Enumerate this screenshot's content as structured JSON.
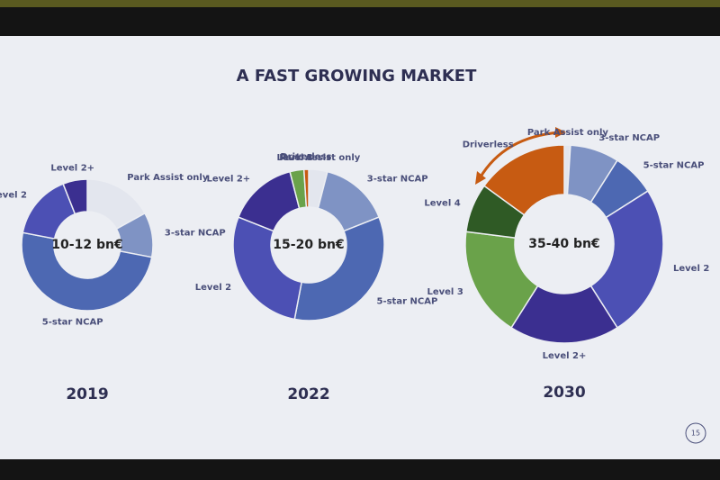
{
  "title": "A FAST GROWING MARKET",
  "page_number": "15",
  "chart_data": [
    {
      "type": "donut",
      "title": "2019",
      "center_label": "10-12 bn€",
      "categories": [
        "Park Assist only",
        "3-star NCAP",
        "5-star NCAP",
        "Level 2",
        "Level 2+"
      ],
      "values": [
        17,
        11,
        50,
        16,
        6
      ],
      "colors": [
        "#e3e6ee",
        "#7f93c4",
        "#4d68b2",
        "#4c50b4",
        "#3b2f90"
      ]
    },
    {
      "type": "donut",
      "title": "2022",
      "center_label": "15-20 bn€",
      "categories": [
        "Park Assist only",
        "3-star NCAP",
        "5-star NCAP",
        "Level 2",
        "Level 2+",
        "Level 3",
        "Driverless"
      ],
      "values": [
        4,
        15,
        34,
        28,
        15,
        3,
        1
      ],
      "colors": [
        "#e3e6ee",
        "#7f93c4",
        "#4d68b2",
        "#4c50b4",
        "#3b2f90",
        "#6aa24a",
        "#c75b12"
      ]
    },
    {
      "type": "donut",
      "title": "2030",
      "center_label": "35-40 bn€",
      "categories": [
        "Park Assist only",
        "3-star NCAP",
        "5-star NCAP",
        "Level 2",
        "Level 2+",
        "Level 3",
        "Level 4",
        "Driverless"
      ],
      "values": [
        1,
        8,
        7,
        25,
        18,
        18,
        8,
        15
      ],
      "colors": [
        "#e3e6ee",
        "#7f93c4",
        "#4d68b2",
        "#4c50b4",
        "#3b2f90",
        "#6aa24a",
        "#2f5a25",
        "#c75b12"
      ]
    }
  ]
}
